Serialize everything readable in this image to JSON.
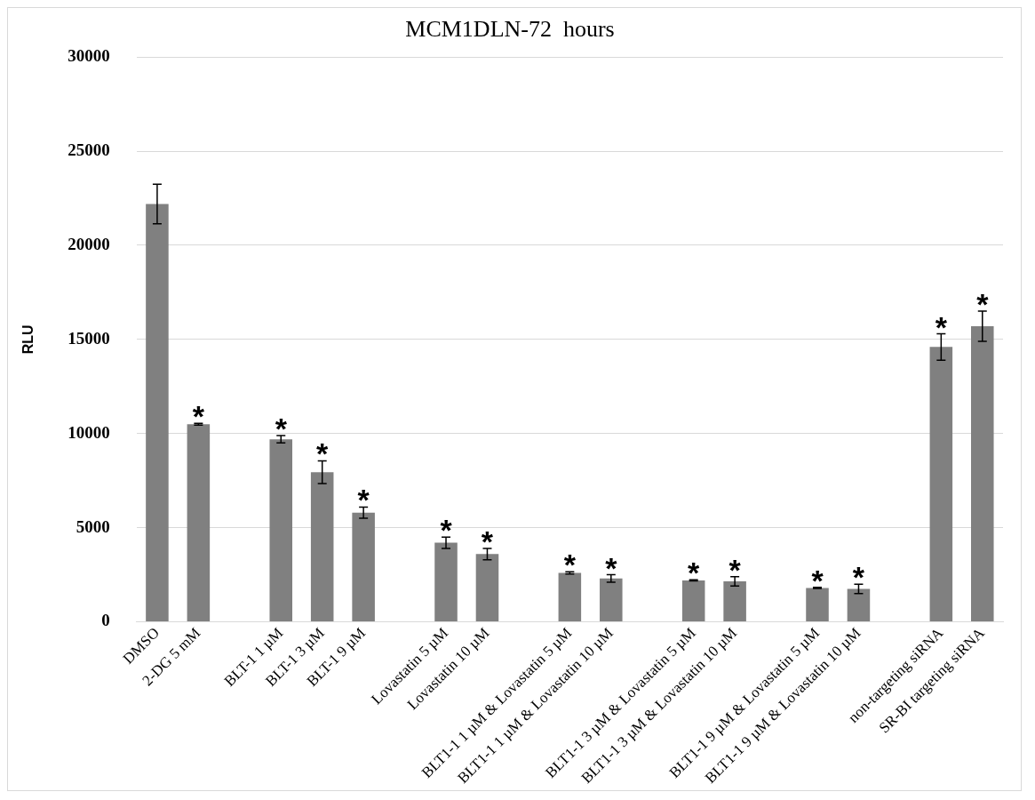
{
  "chart_data": {
    "type": "bar",
    "title": "MCM1DLN-72  hours",
    "ylabel": "RLU",
    "categories": [
      "DMSO",
      "2-DG 5 mM",
      null,
      "BLT-1 1 µM",
      "BLT-1 3 µM",
      "BLT-1 9 µM",
      null,
      "Lovastatin 5 µM",
      "Lovastatin 10 µM",
      null,
      "BLT1-1 1 µM & Lovastatin 5 µM",
      "BLT1-1 1 µM & Lovastatin 10 µM",
      null,
      "BLT1-1 3 µM & Lovastatin 5 µM",
      "BLT1-1 3 µM & Lovastatin 10 µM",
      null,
      "BLT1-1 9 µM & Lovastatin 5 µM",
      "BLT1-1 9 µM & Lovastatin 10 µM",
      null,
      "non-targeting siRNA",
      "SR-BI targeting siRNA"
    ],
    "values": [
      22200,
      10500,
      null,
      9700,
      7950,
      5800,
      null,
      4200,
      3600,
      null,
      2600,
      2300,
      null,
      2200,
      2150,
      null,
      1800,
      1750,
      null,
      14600,
      15700
    ],
    "errors": [
      1050,
      50,
      null,
      200,
      600,
      300,
      null,
      300,
      300,
      null,
      60,
      200,
      null,
      30,
      250,
      null,
      30,
      250,
      null,
      700,
      800
    ],
    "color": "#808080",
    "ylim": [
      0,
      30000
    ],
    "yticks": [
      0,
      5000,
      10000,
      15000,
      20000,
      25000,
      30000
    ],
    "grid": "y",
    "annotations": [
      {
        "text": "*",
        "x": "2-DG 5 mM",
        "y": 10550
      },
      {
        "text": "*",
        "x": "BLT-1 1 µM",
        "y": 9900
      },
      {
        "text": "*",
        "x": "BLT-1 3 µM",
        "y": 8550
      },
      {
        "text": "*",
        "x": "BLT-1 9 µM",
        "y": 6100
      },
      {
        "text": "*",
        "x": "Lovastatin 5 µM",
        "y": 4500
      },
      {
        "text": "*",
        "x": "Lovastatin 10 µM",
        "y": 3900
      },
      {
        "text": "*",
        "x": "BLT1-1 1 µM & Lovastatin 5 µM",
        "y": 2660
      },
      {
        "text": "*",
        "x": "BLT1-1 1 µM & Lovastatin 10 µM",
        "y": 2500
      },
      {
        "text": "*",
        "x": "BLT1-1 3 µM & Lovastatin 5 µM",
        "y": 2230
      },
      {
        "text": "*",
        "x": "BLT1-1 3 µM & Lovastatin 10 µM",
        "y": 2400
      },
      {
        "text": "*",
        "x": "BLT1-1 9 µM & Lovastatin 5 µM",
        "y": 1830
      },
      {
        "text": "*",
        "x": "BLT1-1 9 µM & Lovastatin 10 µM",
        "y": 2000
      },
      {
        "text": "*",
        "x": "non-targeting siRNA",
        "y": 15300
      },
      {
        "text": "*",
        "x": "SR-BI targeting siRNA",
        "y": 16500
      }
    ]
  }
}
